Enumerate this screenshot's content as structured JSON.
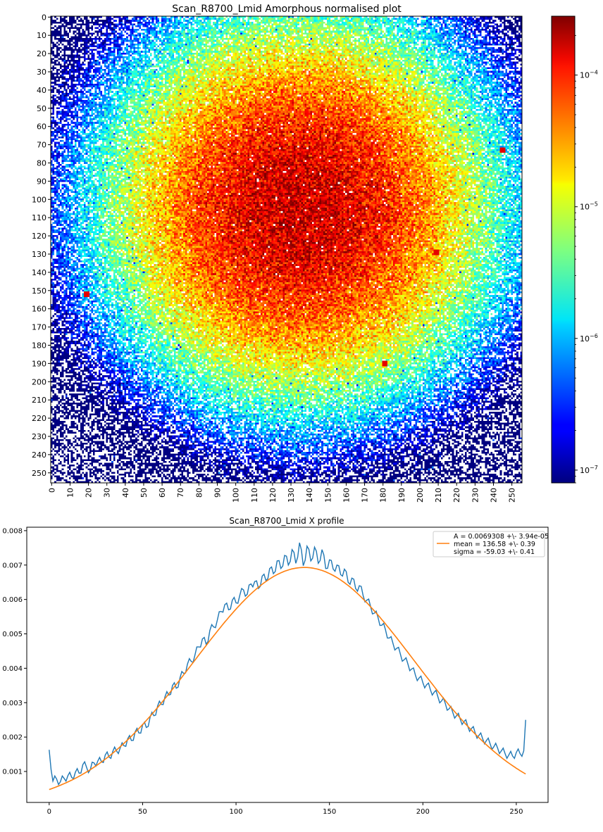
{
  "chart_data": [
    {
      "type": "heatmap",
      "title": "Scan_R8700_Lmid Amorphous normalised plot",
      "xlabel": "",
      "ylabel": "",
      "grid_size": 256,
      "x_ticks": [
        0,
        10,
        20,
        30,
        40,
        50,
        60,
        70,
        80,
        90,
        100,
        110,
        120,
        130,
        140,
        150,
        160,
        170,
        180,
        190,
        200,
        210,
        220,
        230,
        240,
        250
      ],
      "y_ticks": [
        0,
        10,
        20,
        30,
        40,
        50,
        60,
        70,
        80,
        90,
        100,
        110,
        120,
        130,
        140,
        150,
        160,
        170,
        180,
        190,
        200,
        210,
        220,
        230,
        240,
        250
      ],
      "colormap": "jet",
      "color_scale": "log",
      "color_range": [
        8e-08,
        0.00028
      ],
      "colorbar_ticks": [
        {
          "label": "10",
          "exp": "−4",
          "value": 0.0001
        },
        {
          "label": "10",
          "exp": "−5",
          "value": 1e-05
        },
        {
          "label": "10",
          "exp": "−6",
          "value": 1e-06
        },
        {
          "label": "10",
          "exp": "−7",
          "value": 1e-07
        }
      ],
      "features": {
        "peak_center": [
          135,
          105
        ],
        "hot_spots": [
          [
            181,
            190
          ],
          [
            209,
            129
          ],
          [
            245,
            73
          ],
          [
            19,
            152
          ]
        ]
      }
    },
    {
      "type": "line",
      "title": "Scan_R8700_Lmid X profile",
      "xlabel": "",
      "ylabel": "",
      "xlim": [
        -12,
        267
      ],
      "ylim": [
        0.0001,
        0.0081
      ],
      "x_ticks": [
        0,
        50,
        100,
        150,
        200,
        250
      ],
      "y_ticks": [
        0.001,
        0.002,
        0.003,
        0.004,
        0.005,
        0.006,
        0.007,
        0.008
      ],
      "y_tick_labels": [
        "0.001",
        "0.002",
        "0.003",
        "0.004",
        "0.005",
        "0.006",
        "0.007",
        "0.008"
      ],
      "legend_placement": "top-right",
      "legend": {
        "line1": "A = 0.0069308 +\\- 3.94e-05",
        "line2": "mean = 136.58 +\\- 0.39",
        "line3": "sigma = -59.03 +\\- 0.41"
      },
      "series": [
        {
          "role": "data",
          "color": "#1f77b4",
          "points": [
            [
              0,
              0.00163
            ],
            [
              2,
              0.00072
            ],
            [
              4,
              0.00078
            ],
            [
              6,
              0.0007
            ],
            [
              8,
              0.0008
            ],
            [
              10,
              0.00088
            ],
            [
              12,
              0.00083
            ],
            [
              14,
              0.00098
            ],
            [
              16,
              0.00095
            ],
            [
              18,
              0.0012
            ],
            [
              20,
              0.00112
            ],
            [
              22,
              0.00105
            ],
            [
              24,
              0.00125
            ],
            [
              26,
              0.0013
            ],
            [
              28,
              0.00128
            ],
            [
              30,
              0.00148
            ],
            [
              32,
              0.00142
            ],
            [
              34,
              0.00158
            ],
            [
              36,
              0.0016
            ],
            [
              38,
              0.00168
            ],
            [
              40,
              0.00175
            ],
            [
              42,
              0.00195
            ],
            [
              44,
              0.0019
            ],
            [
              46,
              0.00215
            ],
            [
              48,
              0.00212
            ],
            [
              50,
              0.00235
            ],
            [
              52,
              0.00228
            ],
            [
              54,
              0.00258
            ],
            [
              56,
              0.00262
            ],
            [
              58,
              0.0029
            ],
            [
              60,
              0.00295
            ],
            [
              62,
              0.00318
            ],
            [
              64,
              0.00322
            ],
            [
              66,
              0.0035
            ],
            [
              68,
              0.00342
            ],
            [
              70,
              0.00372
            ],
            [
              72,
              0.00385
            ],
            [
              74,
              0.00412
            ],
            [
              76,
              0.0042
            ],
            [
              78,
              0.00438
            ],
            [
              80,
              0.00462
            ],
            [
              82,
              0.00485
            ],
            [
              84,
              0.0047
            ],
            [
              86,
              0.0051
            ],
            [
              88,
              0.0052
            ],
            [
              90,
              0.0054
            ],
            [
              92,
              0.00565
            ],
            [
              94,
              0.00585
            ],
            [
              96,
              0.0057
            ],
            [
              98,
              0.00598
            ],
            [
              100,
              0.0059
            ],
            [
              102,
              0.00612
            ],
            [
              104,
              0.00628
            ],
            [
              106,
              0.00615
            ],
            [
              108,
              0.00645
            ],
            [
              110,
              0.00652
            ],
            [
              112,
              0.00632
            ],
            [
              114,
              0.00668
            ],
            [
              116,
              0.00655
            ],
            [
              118,
              0.0069
            ],
            [
              120,
              0.00675
            ],
            [
              122,
              0.00712
            ],
            [
              124,
              0.0069
            ],
            [
              126,
              0.00728
            ],
            [
              128,
              0.007
            ],
            [
              130,
              0.00745
            ],
            [
              132,
              0.00705
            ],
            [
              134,
              0.00765
            ],
            [
              136,
              0.00698
            ],
            [
              138,
              0.00755
            ],
            [
              140,
              0.00712
            ],
            [
              142,
              0.00752
            ],
            [
              144,
              0.00705
            ],
            [
              146,
              0.00745
            ],
            [
              148,
              0.0069
            ],
            [
              150,
              0.00715
            ],
            [
              152,
              0.00688
            ],
            [
              154,
              0.007
            ],
            [
              156,
              0.00672
            ],
            [
              158,
              0.00688
            ],
            [
              160,
              0.0065
            ],
            [
              162,
              0.00662
            ],
            [
              164,
              0.00632
            ],
            [
              166,
              0.0064
            ],
            [
              168,
              0.00612
            ],
            [
              170,
              0.00598
            ],
            [
              172,
              0.0058
            ],
            [
              174,
              0.0056
            ],
            [
              176,
              0.00548
            ],
            [
              178,
              0.00525
            ],
            [
              180,
              0.00512
            ],
            [
              182,
              0.00488
            ],
            [
              184,
              0.00472
            ],
            [
              186,
              0.00458
            ],
            [
              188,
              0.0044
            ],
            [
              190,
              0.00425
            ],
            [
              192,
              0.00412
            ],
            [
              194,
              0.00398
            ],
            [
              196,
              0.0038
            ],
            [
              198,
              0.00372
            ],
            [
              200,
              0.00358
            ],
            [
              202,
              0.00352
            ],
            [
              204,
              0.00338
            ],
            [
              206,
              0.0033
            ],
            [
              208,
              0.00318
            ],
            [
              210,
              0.00305
            ],
            [
              212,
              0.00298
            ],
            [
              214,
              0.00282
            ],
            [
              216,
              0.00272
            ],
            [
              218,
              0.00262
            ],
            [
              220,
              0.00252
            ],
            [
              222,
              0.00245
            ],
            [
              224,
              0.00232
            ],
            [
              226,
              0.00225
            ],
            [
              228,
              0.00212
            ],
            [
              230,
              0.00205
            ],
            [
              232,
              0.00195
            ],
            [
              234,
              0.0019
            ],
            [
              236,
              0.0018
            ],
            [
              238,
              0.00172
            ],
            [
              240,
              0.00168
            ],
            [
              242,
              0.0016
            ],
            [
              244,
              0.00152
            ],
            [
              246,
              0.00148
            ],
            [
              248,
              0.00145
            ],
            [
              250,
              0.00155
            ],
            [
              252,
              0.00152
            ],
            [
              254,
              0.0016
            ],
            [
              255,
              0.0025
            ]
          ]
        },
        {
          "role": "fit",
          "color": "#ff7f0e",
          "gaussian": {
            "A": 0.0069308,
            "mean": 136.58,
            "sigma": -59.03
          },
          "x_range": [
            0,
            255
          ]
        }
      ]
    }
  ]
}
